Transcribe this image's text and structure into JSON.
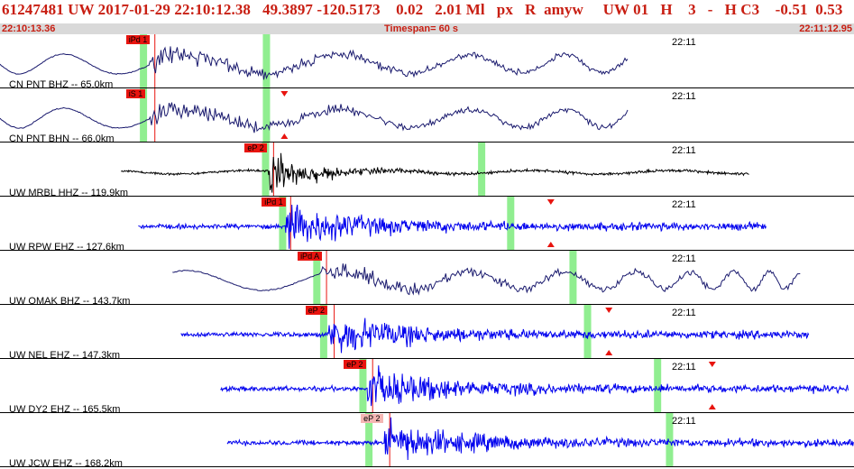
{
  "header": {
    "title": "61247481 UW 2017-01-29 22:10:12.38   49.3897 -120.5173    0.02   2.01 Ml   px   R  amyw     UW 01   H    3   -   H C3    -0.51  0.53",
    "start_time": "22:10:13.36",
    "timespan": "Timespan=  60 s",
    "end_time": "22:11:12.95"
  },
  "colors": {
    "title": "#c81e12",
    "subbar": "#d9d9d9",
    "pick_marker": "#e8140f",
    "pick_bar": "#90ee90",
    "trace_navy": "#1a1a6e",
    "trace_blue": "#0000ee",
    "trace_black": "#000000"
  },
  "channels": [
    {
      "label": "CN PNT BHZ -- 65.0km",
      "time": "22:11",
      "pick": "iPd 1",
      "pick_style": "solid",
      "start": 0,
      "end": 0.735,
      "type": "low_surface",
      "color": "#1a1a6e",
      "onset": 0.175,
      "greens": [
        0.168,
        0.312
      ]
    },
    {
      "label": "CN PNT BHN -- 66.0km",
      "time": "22:11",
      "pick": "iS 1",
      "pick_style": "solid",
      "start": 0,
      "end": 0.735,
      "type": "low_surface",
      "color": "#1a1a6e",
      "onset": 0.175,
      "greens": [
        0.168,
        0.312
      ],
      "arrow": 0.333
    },
    {
      "label": "UW MRBL HHZ -- 119.9km",
      "time": "22:11",
      "pick": "eP 2",
      "pick_style": "solid",
      "start": 0.142,
      "end": 0.877,
      "type": "burst",
      "color": "#000000",
      "onset": 0.314,
      "greens": [
        0.311,
        0.564
      ]
    },
    {
      "label": "UW RPW EHZ -- 127.6km",
      "time": "22:11",
      "pick": "iPd 1",
      "pick_style": "solid",
      "start": 0.162,
      "end": 0.897,
      "type": "noise",
      "color": "#0000ee",
      "onset": 0.334,
      "greens": [
        0.331,
        0.598
      ],
      "arrow": 0.645
    },
    {
      "label": "UW OMAK BHZ -- 143.7km",
      "time": "22:11",
      "pick": "iPd A",
      "pick_style": "solid",
      "start": 0.202,
      "end": 0.937,
      "type": "low_surface",
      "color": "#1a1a6e",
      "onset": 0.376,
      "greens": [
        0.371,
        0.671
      ]
    },
    {
      "label": "UW NEL EHZ -- 147.3km",
      "time": "22:11",
      "pick": "eP 2",
      "pick_style": "solid",
      "start": 0.212,
      "end": 0.947,
      "type": "noise",
      "color": "#0000ee",
      "onset": 0.385,
      "greens": [
        0.379,
        0.688
      ],
      "arrow": 0.713
    },
    {
      "label": "UW DY2 EHZ -- 165.5km",
      "time": "22:11",
      "pick": "eP 2",
      "pick_style": "solid",
      "start": 0.258,
      "end": 0.994,
      "type": "noise",
      "color": "#0000ee",
      "onset": 0.43,
      "greens": [
        0.425,
        0.77
      ],
      "arrow": 0.834
    },
    {
      "label": "UW JCW EHZ -- 168.2km",
      "time": "22:11",
      "pick": "eP 2",
      "pick_style": "soft",
      "start": 0.266,
      "end": 1.0,
      "type": "noise",
      "color": "#0000ee",
      "onset": 0.45,
      "greens": [
        0.432,
        0.784
      ]
    }
  ]
}
